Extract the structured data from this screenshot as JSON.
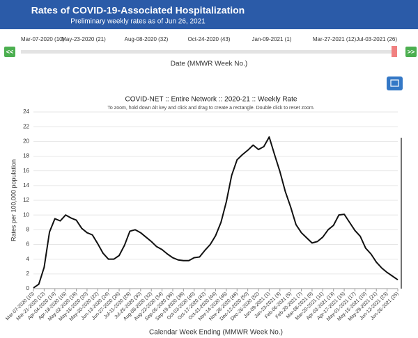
{
  "header": {
    "title": "Rates of COVID-19-Associated Hospitalization",
    "subtitle": "Preliminary weekly rates as of Jun 26, 2021"
  },
  "slider": {
    "labels": [
      "Mar-07-2020 (10)",
      "May-23-2020 (21)",
      "Aug-08-2020 (32)",
      "Oct-24-2020 (43)",
      "Jan-09-2021 (1)",
      "Mar-27-2021 (12)",
      "Jul-03-2021 (26)"
    ],
    "prev": "<<",
    "next": ">>",
    "caption": "Date (MMWR Week No.)"
  },
  "chart_data": {
    "type": "line",
    "title": "COVID-NET :: Entire Network :: 2020-21 :: Weekly Rate",
    "subtitle": "To zoom, hold down Alt key and click and drag to create a rectangle. Double click to reset zoom.",
    "y_label": "Rates per 100,000 population",
    "x_label": "Calendar Week Ending (MMWR Week No.)",
    "categories": [
      "Mar-07-2020 (10)",
      null,
      "Mar-21-2020 (12)",
      null,
      "Apr-04-2020 (14)",
      null,
      "Apr-18-2020 (16)",
      null,
      "May-02-2020 (18)",
      null,
      "May-16-2020 (20)",
      null,
      "May-30-2020 (22)",
      null,
      "Jun-13-2020 (24)",
      null,
      "Jun-27-2020 (26)",
      null,
      "Jul-11-2020 (28)",
      null,
      "Jul-25-2020 (30)",
      null,
      "Aug-08-2020 (32)",
      null,
      "Aug-22-2020 (34)",
      null,
      "Sep-05-2020 (36)",
      null,
      "Sep-19-2020 (38)",
      null,
      "Oct-03-2020 (40)",
      null,
      "Oct-17-2020 (42)",
      null,
      "Oct-31-2020 (44)",
      null,
      "Nov-14-2020 (46)",
      null,
      "Nov-28-2020 (48)",
      null,
      "Dec-12-2020 (50)",
      null,
      "Dec-26-2020 (52)",
      null,
      "Jan-09-2021 (1)",
      null,
      "Jan-23-2021 (3)",
      null,
      "Feb-06-2021 (5)",
      null,
      "Feb-20-2021 (7)",
      null,
      "Mar-06-2021 (9)",
      null,
      "Mar-20-2021 (11)",
      null,
      "Apr-03-2021 (13)",
      null,
      "Apr-17-2021 (15)",
      null,
      "May-01-2021 (17)",
      null,
      "May-15-2021 (19)",
      null,
      "May-29-2021 (21)",
      null,
      "Jun-12-2021 (23)",
      null,
      "Jun-26-2021 (25)"
    ],
    "series": [
      {
        "name": "Weekly Rate",
        "color": "#111111",
        "values": [
          0.1,
          0.6,
          2.9,
          7.7,
          9.5,
          9.2,
          10.0,
          9.6,
          9.3,
          8.2,
          7.6,
          7.3,
          6.1,
          4.8,
          4.0,
          4.0,
          4.5,
          5.9,
          7.8,
          8.0,
          7.6,
          7.0,
          6.4,
          5.7,
          5.3,
          4.7,
          4.2,
          3.9,
          3.8,
          3.8,
          4.2,
          4.3,
          5.2,
          6.0,
          7.2,
          9.0,
          11.8,
          15.4,
          17.5,
          18.2,
          18.8,
          19.5,
          18.9,
          19.3,
          20.6,
          18.2,
          15.9,
          13.2,
          11.1,
          8.7,
          7.6,
          6.9,
          6.2,
          6.4,
          7.0,
          8.0,
          8.6,
          10.0,
          10.1,
          9.0,
          7.9,
          7.1,
          5.5,
          4.7,
          3.6,
          2.8,
          2.2,
          1.7,
          1.2
        ]
      }
    ],
    "ylim": [
      0,
      24
    ],
    "yticks": [
      0,
      2,
      4,
      6,
      8,
      10,
      12,
      14,
      16,
      18,
      20,
      22,
      24
    ],
    "grid": true
  }
}
